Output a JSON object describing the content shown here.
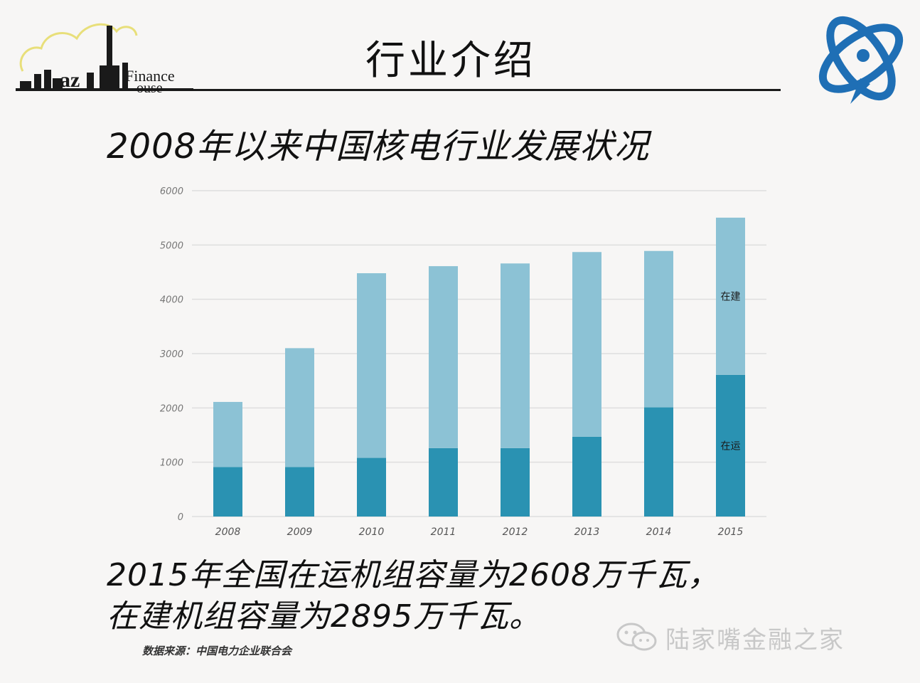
{
  "slide": {
    "title": "行业介绍",
    "subtitle": "2008年以来中国核电行业发展状况",
    "note_line1": "2015年全国在运机组容量为2608万千瓦，",
    "note_line2": "在建机组容量为2895万千瓦。",
    "source": "数据来源：中国电力企业联合会",
    "watermark": "陆家嘴金融之家"
  },
  "logos": {
    "left_text_1": "Finance",
    "left_text_2": "ouse",
    "left_text_3": "az"
  },
  "colors": {
    "operating": "#2a92b2",
    "construction": "#8cc2d5",
    "logo_blue": "#1f6fb5",
    "cloud_yellow": "#e8df7a"
  },
  "chart_data": {
    "type": "bar",
    "stacked": true,
    "categories": [
      "2008",
      "2009",
      "2010",
      "2011",
      "2012",
      "2013",
      "2014",
      "2015"
    ],
    "series": [
      {
        "name": "在运",
        "values": [
          910,
          910,
          1080,
          1260,
          1260,
          1470,
          2010,
          2608
        ]
      },
      {
        "name": "在建",
        "values": [
          1200,
          2190,
          3400,
          3350,
          3400,
          3400,
          2880,
          2895
        ]
      }
    ],
    "ylim": [
      0,
      6000
    ],
    "yticks": [
      0,
      1000,
      2000,
      3000,
      4000,
      5000,
      6000
    ],
    "grid": true,
    "legend": "inline labels on 2015 bar",
    "xlabel": "",
    "ylabel": ""
  }
}
